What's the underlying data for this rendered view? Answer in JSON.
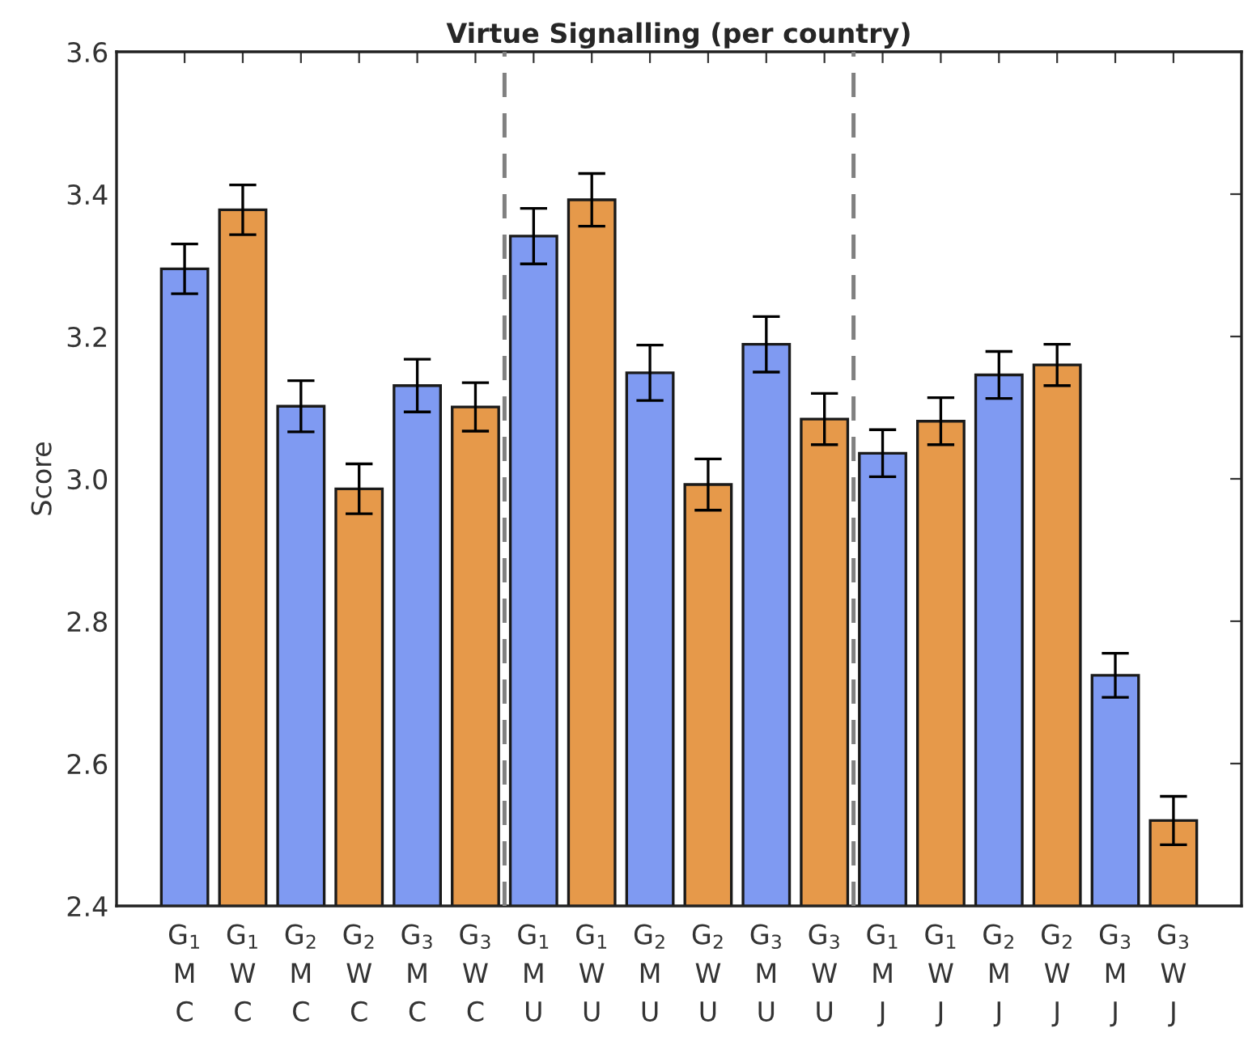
{
  "chart_data": {
    "type": "bar",
    "title": "Virtue Signalling (per country)",
    "ylabel": "Score",
    "categories": [
      "G$_{1}$\nM\nC",
      "G$_{1}$\nW\nC",
      "G$_{2}$\nM\nC",
      "G$_{2}$\nW\nC",
      "G$_{3}$\nM\nC",
      "G$_{3}$\nW\nC",
      "G$_{1}$\nM\nU",
      "G$_{1}$\nW\nU",
      "G$_{2}$\nM\nU",
      "G$_{2}$\nW\nU",
      "G$_{3}$\nM\nU",
      "G$_{3}$\nW\nU",
      "G$_{1}$\nM\nJ",
      "G$_{1}$\nW\nJ",
      "G$_{2}$\nM\nJ",
      "G$_{2}$\nW\nJ",
      "G$_{3}$\nM\nJ",
      "G$_{3}$\nW\nJ"
    ],
    "values": [
      3.295,
      3.378,
      3.102,
      2.986,
      3.131,
      3.101,
      3.341,
      3.392,
      3.149,
      2.992,
      3.189,
      3.084,
      3.036,
      3.081,
      3.146,
      3.16,
      2.724,
      2.52
    ],
    "errors": [
      0.035,
      0.035,
      0.036,
      0.035,
      0.037,
      0.034,
      0.039,
      0.037,
      0.039,
      0.036,
      0.039,
      0.036,
      0.033,
      0.033,
      0.033,
      0.029,
      0.031,
      0.034
    ],
    "colors": [
      "#7f9af2",
      "#e6994a",
      "#7f9af2",
      "#e6994a",
      "#7f9af2",
      "#e6994a",
      "#7f9af2",
      "#e6994a",
      "#7f9af2",
      "#e6994a",
      "#7f9af2",
      "#e6994a",
      "#7f9af2",
      "#e6994a",
      "#7f9af2",
      "#e6994a",
      "#7f9af2",
      "#e6994a"
    ],
    "ylim": [
      2.4,
      3.6
    ],
    "yticks": [
      2.4,
      2.6,
      2.8,
      {
        "value": 3,
        "label": "3.0"
      },
      3.2,
      3.4,
      3.6
    ],
    "grid": false,
    "legend": false
  }
}
